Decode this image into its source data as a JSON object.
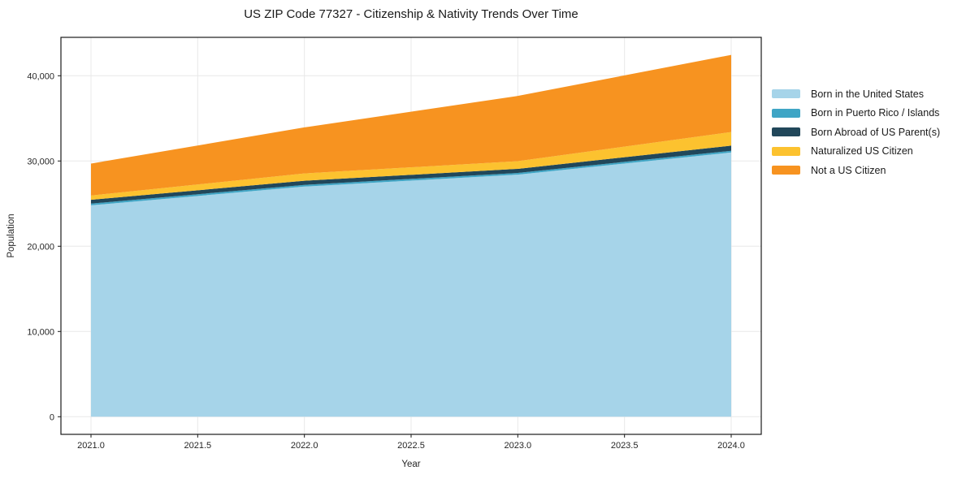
{
  "header": {
    "title": "US ZIP Code 77327 - Citizenship & Nativity Trends Over Time"
  },
  "chart_data": {
    "type": "area",
    "stacked": true,
    "title": "US ZIP Code 77327 - Citizenship & Nativity Trends Over Time",
    "xlabel": "Year",
    "ylabel": "Population",
    "x": [
      2021,
      2022,
      2023,
      2024
    ],
    "series": [
      {
        "name": "Born in the United States",
        "color": "#a6d4e9",
        "values": [
          24800,
          27000,
          28400,
          31000
        ]
      },
      {
        "name": "Born in Puerto Rico / Islands",
        "color": "#3fa5c5",
        "values": [
          200,
          200,
          200,
          200
        ]
      },
      {
        "name": "Born Abroad of US Parent(s)",
        "color": "#21475a",
        "values": [
          450,
          480,
          480,
          600
        ]
      },
      {
        "name": "Naturalized US Citizen",
        "color": "#fcc22f",
        "values": [
          500,
          860,
          900,
          1600
        ]
      },
      {
        "name": "Not a US Citizen",
        "color": "#f79320",
        "values": [
          3750,
          5400,
          7650,
          9050
        ]
      }
    ],
    "stack_totals": [
      29700,
      33940,
      37630,
      42450
    ],
    "xticks": {
      "values": [
        2021.0,
        2021.5,
        2022.0,
        2022.5,
        2023.0,
        2023.5,
        2024.0
      ],
      "labels": [
        "2021.0",
        "2021.5",
        "2022.0",
        "2022.5",
        "2023.0",
        "2023.5",
        "2024.0"
      ]
    },
    "yticks": {
      "values": [
        0,
        10000,
        20000,
        30000,
        40000
      ],
      "labels": [
        "0",
        "10,000",
        "20,000",
        "30,000",
        "40,000"
      ]
    },
    "xlim": [
      2020.86,
      2024.14
    ],
    "ylim": [
      -2070,
      44500
    ],
    "grid": true,
    "legend_position": "right",
    "style": {
      "grid_color": "#e8e8e8",
      "spine_color": "#1a1a1a",
      "background": "#ffffff"
    }
  }
}
